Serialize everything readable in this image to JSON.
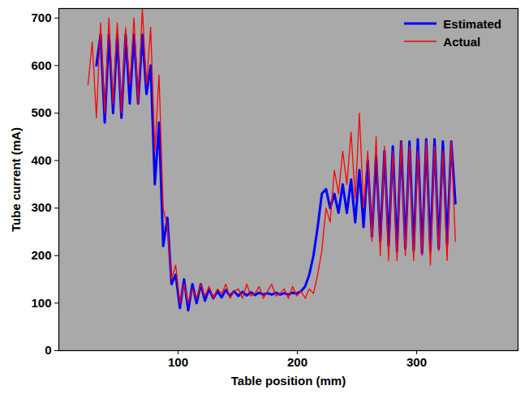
{
  "chart_data": {
    "type": "line",
    "x_label": "Table position (mm)",
    "y_label": "Tube current (mA)",
    "xlim": [
      0,
      385
    ],
    "xticks": [
      100,
      200,
      300
    ],
    "ylim": [
      0,
      720
    ],
    "yticks": [
      0,
      100,
      200,
      300,
      400,
      500,
      600,
      700
    ],
    "legend": "upper right",
    "x": [
      24.5,
      28,
      31.5,
      35,
      38.5,
      42,
      45.5,
      49,
      52.5,
      56,
      59.5,
      63,
      66.5,
      70,
      73.5,
      77,
      80.5,
      84,
      87.5,
      91,
      94.5,
      98,
      101.5,
      105,
      108.5,
      112,
      115.5,
      119,
      122.5,
      126,
      129.5,
      133,
      136.5,
      140,
      143.5,
      147,
      150.5,
      154,
      157.5,
      161,
      164.5,
      168,
      171.5,
      175,
      178.5,
      182,
      185.5,
      189,
      192.5,
      196,
      199.5,
      203,
      206.5,
      210,
      213.5,
      217,
      220.5,
      224,
      227.5,
      231,
      234.5,
      238,
      241.5,
      245,
      248.5,
      252,
      255.5,
      259,
      262.5,
      266,
      269.5,
      273,
      276.5,
      280,
      283.5,
      287,
      290.5,
      294,
      297.5,
      301,
      304.5,
      308,
      311.5,
      315,
      318.5,
      322,
      325.5,
      329,
      332.5
    ],
    "series": [
      {
        "name": "Estimated",
        "color": "#0000ff",
        "line_style": "solid",
        "values": [
          null,
          null,
          600,
          665,
          480,
          665,
          500,
          665,
          490,
          665,
          520,
          665,
          520,
          665,
          540,
          600,
          350,
          480,
          220,
          280,
          140,
          160,
          90,
          150,
          85,
          140,
          100,
          140,
          105,
          130,
          110,
          125,
          112,
          128,
          115,
          125,
          115,
          124,
          116,
          123,
          117,
          122,
          118,
          121,
          118,
          122,
          118,
          121,
          118,
          122,
          120,
          125,
          135,
          160,
          200,
          260,
          330,
          340,
          300,
          330,
          290,
          350,
          290,
          360,
          270,
          380,
          260,
          400,
          240,
          410,
          230,
          420,
          220,
          430,
          210,
          440,
          215,
          440,
          210,
          445,
          205,
          445,
          210,
          445,
          215,
          440,
          225,
          440,
          310
        ]
      },
      {
        "name": "Actual",
        "color": "#ff0000",
        "line_style": "solid",
        "values": [
          560,
          650,
          490,
          690,
          500,
          700,
          520,
          690,
          500,
          680,
          560,
          700,
          520,
          720,
          560,
          680,
          420,
          580,
          300,
          260,
          150,
          180,
          100,
          140,
          100,
          130,
          110,
          140,
          115,
          135,
          110,
          130,
          120,
          140,
          110,
          125,
          130,
          110,
          140,
          115,
          120,
          135,
          110,
          125,
          140,
          115,
          120,
          130,
          110,
          135,
          115,
          125,
          110,
          130,
          120,
          160,
          210,
          300,
          270,
          380,
          330,
          420,
          350,
          460,
          320,
          500,
          300,
          420,
          230,
          450,
          200,
          430,
          190,
          420,
          190,
          440,
          200,
          430,
          190,
          420,
          200,
          440,
          180,
          430,
          210,
          420,
          190,
          440,
          230
        ]
      }
    ]
  }
}
